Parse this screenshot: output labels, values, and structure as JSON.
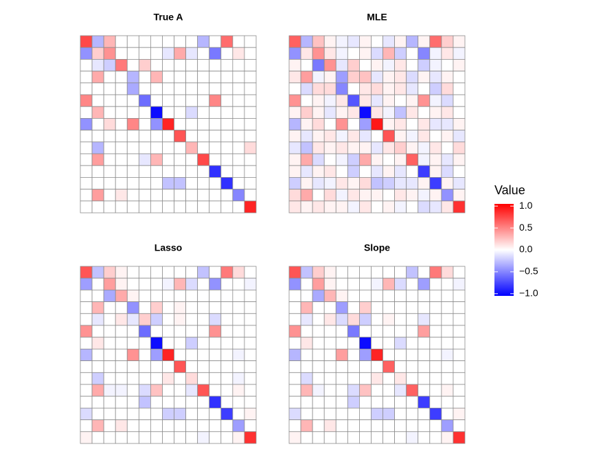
{
  "chart_data": [
    {
      "type": "heatmap",
      "title": "True A",
      "values": [
        [
          0.75,
          -0.3,
          0.3,
          0,
          0,
          0,
          0,
          0,
          0,
          0,
          -0.3,
          0,
          0.6,
          0,
          0
        ],
        [
          -0.45,
          0.2,
          0.45,
          0,
          0,
          0,
          0,
          -0.1,
          0.35,
          -0.1,
          0,
          -0.55,
          0,
          0.1,
          0
        ],
        [
          0,
          -0.1,
          -0.2,
          0.55,
          0,
          0.2,
          0,
          0,
          0,
          0,
          0,
          0,
          0,
          0,
          0
        ],
        [
          0,
          0.35,
          0,
          0,
          -0.3,
          0,
          0.3,
          0,
          0,
          0,
          0,
          0,
          0,
          0,
          0
        ],
        [
          0,
          0,
          0,
          0,
          -0.35,
          0,
          0,
          0,
          0,
          0,
          0,
          0,
          0,
          0,
          0
        ],
        [
          0.5,
          0,
          0,
          0,
          0,
          -0.6,
          0,
          0,
          0,
          0,
          0,
          0.5,
          0,
          0,
          0
        ],
        [
          0,
          0.3,
          0,
          0,
          0,
          0,
          -1,
          0,
          0,
          -0.15,
          0,
          0,
          0,
          0,
          0
        ],
        [
          -0.45,
          0,
          0.15,
          0,
          0.5,
          0,
          -0.45,
          0.9,
          0,
          0,
          0,
          0,
          0,
          0,
          0
        ],
        [
          0,
          0,
          0,
          0,
          0,
          0,
          0,
          0,
          0.7,
          0,
          0,
          0,
          0,
          0,
          0
        ],
        [
          0,
          -0.3,
          0,
          0,
          0,
          0,
          0,
          0,
          0,
          0.3,
          0,
          0,
          0,
          0,
          0.15
        ],
        [
          0,
          0.4,
          0,
          0,
          0,
          -0.1,
          0.3,
          0,
          0,
          0,
          0.75,
          0,
          0,
          0,
          0
        ],
        [
          0,
          0,
          0,
          0,
          0,
          0,
          0,
          0,
          0,
          0,
          0,
          -0.85,
          0,
          0,
          0
        ],
        [
          0,
          0,
          0,
          0,
          0,
          0,
          0,
          -0.25,
          -0.25,
          0,
          0,
          0,
          -0.85,
          0,
          0
        ],
        [
          0,
          0.4,
          0,
          0.1,
          0,
          0,
          0,
          0,
          0,
          0,
          0,
          0,
          0,
          -0.5,
          0
        ],
        [
          0,
          0,
          0,
          0,
          0,
          0,
          0,
          0,
          0,
          0,
          0,
          0,
          0,
          0,
          0.9
        ]
      ]
    },
    {
      "type": "heatmap",
      "title": "MLE",
      "values": [
        [
          0.65,
          -0.3,
          0.25,
          0.05,
          -0.05,
          -0.1,
          0.05,
          0,
          -0.1,
          0.05,
          -0.3,
          0.05,
          0.6,
          0.2,
          0.05
        ],
        [
          -0.45,
          0.1,
          0.45,
          0.1,
          -0.05,
          0,
          0.05,
          -0.15,
          0.3,
          -0.2,
          0,
          -0.5,
          -0.05,
          0.1,
          -0.05
        ],
        [
          0.05,
          0,
          -0.55,
          0.45,
          -0.1,
          0.2,
          0,
          0.05,
          -0.05,
          0.1,
          0,
          -0.2,
          -0.05,
          0,
          0.05
        ],
        [
          0.1,
          0.4,
          -0.05,
          0.05,
          -0.4,
          0.2,
          0.25,
          -0.1,
          0.05,
          0.1,
          -0.15,
          0.05,
          -0.1,
          0.05,
          0
        ],
        [
          0,
          -0.15,
          0.15,
          0.15,
          -0.5,
          0,
          0.1,
          0.15,
          0.05,
          0.1,
          -0.1,
          0,
          -0.2,
          0.15,
          0
        ],
        [
          0.45,
          0,
          0.05,
          -0.05,
          0.1,
          -0.7,
          0.1,
          -0.1,
          0.05,
          0,
          0.05,
          0.45,
          -0.05,
          -0.15,
          0
        ],
        [
          0.05,
          0.2,
          0.05,
          -0.1,
          0.05,
          0.1,
          -1,
          0.1,
          -0.05,
          -0.25,
          0.1,
          0,
          0.05,
          0.1,
          0
        ],
        [
          -0.3,
          0.05,
          0.15,
          0,
          0.45,
          0,
          -0.4,
          0.95,
          0.05,
          0.1,
          0,
          0.1,
          -0.1,
          -0.1,
          0.05
        ],
        [
          0.05,
          -0.1,
          0.05,
          0.1,
          -0.05,
          0.1,
          -0.1,
          0,
          0.7,
          0.05,
          -0.05,
          0.1,
          0,
          0.05,
          -0.1
        ],
        [
          -0.1,
          -0.25,
          0.1,
          0.05,
          0.1,
          0.05,
          0.05,
          -0.1,
          0.1,
          0.2,
          0.05,
          -0.05,
          0.1,
          0,
          0.15
        ],
        [
          0.05,
          0.35,
          -0.15,
          0,
          -0.05,
          -0.2,
          0.35,
          0.05,
          0,
          0.05,
          0.65,
          -0.05,
          0.05,
          -0.1,
          0.05
        ],
        [
          0.05,
          -0.1,
          0.05,
          0.1,
          0,
          -0.2,
          0,
          -0.1,
          0.05,
          -0.1,
          0,
          -0.8,
          0.05,
          -0.15,
          0
        ],
        [
          -0.2,
          0.05,
          -0.1,
          -0.05,
          0.1,
          0.05,
          0.15,
          -0.25,
          -0.2,
          -0.1,
          -0.1,
          0.05,
          -0.8,
          0.05,
          -0.1
        ],
        [
          0.15,
          0.35,
          0,
          0.15,
          -0.05,
          0.1,
          0.05,
          0.05,
          0,
          0.1,
          0.05,
          -0.05,
          0.05,
          -0.45,
          0.05
        ],
        [
          0.1,
          0.05,
          0.1,
          0.05,
          0.05,
          -0.05,
          0.1,
          0,
          0.05,
          -0.05,
          0,
          -0.15,
          -0.1,
          0.1,
          0.85
        ]
      ]
    },
    {
      "type": "heatmap",
      "title": "Lasso",
      "values": [
        [
          0.7,
          -0.25,
          0.2,
          0.05,
          0,
          0,
          0,
          0,
          0,
          0,
          -0.25,
          0,
          0.55,
          0.15,
          0
        ],
        [
          -0.4,
          0,
          0.4,
          0.05,
          0,
          0,
          0,
          -0.05,
          0.3,
          -0.15,
          0,
          -0.45,
          0,
          0,
          -0.05
        ],
        [
          0,
          0,
          -0.35,
          0.35,
          0.05,
          0,
          0,
          0,
          0,
          0,
          0,
          0,
          0,
          0,
          0
        ],
        [
          0,
          0.3,
          0,
          0,
          -0.45,
          0,
          0.2,
          0,
          0.05,
          0,
          0,
          0,
          0,
          0,
          0
        ],
        [
          0,
          -0.1,
          0,
          0.1,
          -0.1,
          0.2,
          -0.2,
          0,
          0.05,
          0,
          0,
          -0.15,
          0,
          0,
          0
        ],
        [
          0.45,
          0,
          0,
          0,
          0,
          -0.6,
          0,
          0,
          0,
          0,
          0,
          0.45,
          0,
          0,
          0
        ],
        [
          0,
          0.1,
          0,
          0,
          0,
          0,
          -1,
          0,
          0,
          -0.2,
          0,
          0,
          0,
          0,
          0
        ],
        [
          -0.3,
          0,
          0,
          0,
          0.45,
          0,
          -0.4,
          0.9,
          0,
          0,
          0,
          0,
          0,
          -0.05,
          0
        ],
        [
          0,
          0,
          0,
          0,
          0,
          0,
          0,
          0,
          0.7,
          0,
          0,
          0,
          0,
          0,
          0
        ],
        [
          0,
          -0.2,
          0,
          0,
          0,
          0,
          0,
          0.1,
          0,
          0.15,
          0,
          0,
          0,
          -0.05,
          0
        ],
        [
          0,
          0.35,
          -0.05,
          -0.05,
          0,
          -0.15,
          0.25,
          0,
          0,
          -0.1,
          0.7,
          0,
          0,
          0.05,
          0
        ],
        [
          0,
          0,
          0,
          0,
          0,
          -0.25,
          0,
          0,
          0,
          0,
          0,
          -0.85,
          0,
          0,
          0
        ],
        [
          -0.15,
          0,
          0,
          0,
          0,
          0,
          0,
          -0.2,
          -0.2,
          0,
          0,
          0,
          -0.8,
          0,
          0.05
        ],
        [
          0,
          0.3,
          0,
          0.1,
          0,
          0,
          0,
          0,
          0,
          0,
          0,
          0,
          0,
          -0.4,
          0
        ],
        [
          0.05,
          0,
          0,
          0,
          0,
          0,
          0,
          0,
          0,
          0,
          -0.05,
          0,
          0,
          0.05,
          0.85
        ]
      ]
    },
    {
      "type": "heatmap",
      "title": "Slope",
      "values": [
        [
          0.7,
          -0.25,
          0.2,
          0.05,
          0,
          0,
          0,
          0,
          0,
          0,
          -0.25,
          0,
          0.55,
          0.15,
          0
        ],
        [
          -0.45,
          0,
          0.4,
          0.05,
          0,
          0,
          0,
          -0.05,
          0.3,
          -0.15,
          0,
          -0.4,
          0,
          0,
          -0.05
        ],
        [
          0,
          0,
          -0.35,
          0.3,
          0.05,
          0,
          0,
          0,
          0,
          0,
          0,
          0,
          0,
          0,
          0
        ],
        [
          0,
          0.3,
          0,
          0,
          -0.4,
          0,
          0.2,
          0,
          0,
          0,
          0,
          0,
          0,
          0,
          0
        ],
        [
          0,
          -0.1,
          0,
          0.1,
          -0.15,
          0.15,
          -0.2,
          0,
          0.05,
          0,
          0,
          -0.1,
          0,
          0,
          0
        ],
        [
          0.45,
          0,
          0,
          0,
          0,
          -0.55,
          0,
          0,
          0,
          0,
          0,
          0.4,
          0,
          0,
          0
        ],
        [
          0,
          0.1,
          0,
          0,
          0,
          0,
          -1,
          0,
          0,
          -0.15,
          0,
          0,
          0,
          0,
          0
        ],
        [
          -0.3,
          0,
          0,
          0,
          0.4,
          0,
          -0.4,
          0.9,
          0,
          0,
          0,
          0,
          0,
          -0.05,
          0
        ],
        [
          0,
          0,
          0,
          0,
          0,
          0,
          0,
          0,
          0.65,
          0,
          0,
          0,
          0,
          0,
          0
        ],
        [
          0,
          -0.15,
          0,
          0,
          0,
          0,
          0,
          0.1,
          0,
          0.1,
          0,
          0,
          0,
          0,
          0
        ],
        [
          0,
          0.3,
          -0.05,
          0,
          0,
          -0.15,
          0.25,
          0,
          0,
          -0.1,
          0.65,
          0,
          0,
          0.05,
          0
        ],
        [
          0,
          0,
          0,
          0,
          0,
          -0.2,
          0,
          0,
          0,
          0,
          0,
          -0.8,
          0,
          0,
          0
        ],
        [
          -0.15,
          0,
          0,
          0,
          0,
          0,
          0,
          -0.2,
          -0.2,
          0,
          0,
          0,
          -0.8,
          0,
          0.05
        ],
        [
          0,
          0.3,
          0,
          0.1,
          0,
          0,
          0,
          0,
          0,
          0,
          0,
          0,
          0,
          -0.4,
          0
        ],
        [
          0.05,
          0,
          0,
          0,
          0,
          0,
          0,
          0,
          0,
          0,
          -0.05,
          0,
          0,
          0.05,
          0.85
        ]
      ]
    }
  ],
  "colorbar": {
    "title": "Value",
    "zlim": [
      -1.05,
      1.05
    ],
    "colors": [
      "#0000ff",
      "#ffffff",
      "#ff0000"
    ],
    "ticks": [
      {
        "value": 1,
        "label": "1.0"
      },
      {
        "value": 0.5,
        "label": "0.5"
      },
      {
        "value": 0,
        "label": "0.0"
      },
      {
        "value": -0.5,
        "label": "−0.5"
      },
      {
        "value": -1,
        "label": "−1.0"
      }
    ]
  }
}
